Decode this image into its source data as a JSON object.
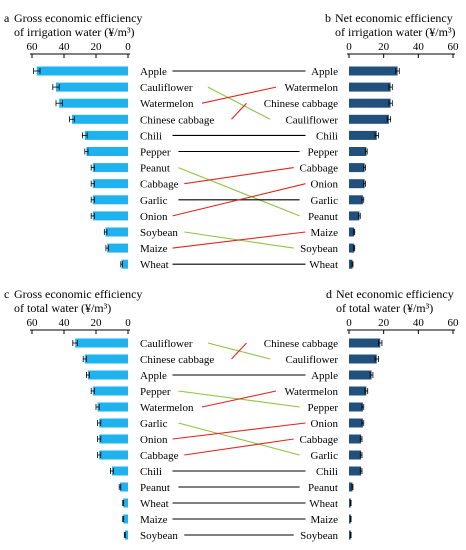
{
  "colors": {
    "gross_bar": "#1eb3ee",
    "net_bar": "#22507c",
    "rank_up": "#e0261f",
    "rank_down": "#8cc63f",
    "same": "#000000"
  },
  "chart_data": [
    {
      "id": "a",
      "type": "bar",
      "orientation": "horizontal",
      "panel_letter": "a",
      "title_line1": "Gross economic efficiency",
      "title_line2": "of irrigation water (¥/m³)",
      "xlim": [
        0,
        60
      ],
      "xticks": [
        "60",
        "40",
        "20",
        "0"
      ],
      "reversed": true,
      "categories": [
        "Apple",
        "Cauliflower",
        "Watermelon",
        "Chinese cabbage",
        "Chili",
        "Pepper",
        "Peanut",
        "Cabbage",
        "Garlic",
        "Onion",
        "Soybean",
        "Maize",
        "Wheat"
      ],
      "values": [
        57,
        45,
        43,
        35,
        27,
        26,
        22,
        22,
        22,
        22,
        14,
        13,
        4
      ],
      "errors": [
        2,
        2,
        2,
        1.5,
        1.5,
        1,
        1,
        1,
        1,
        1,
        0.8,
        0.8,
        0.5
      ]
    },
    {
      "id": "b",
      "type": "bar",
      "orientation": "horizontal",
      "panel_letter": "b",
      "title_line1": "Net economic efficiency",
      "title_line2": "of irrigation water (¥/m³)",
      "xlim": [
        0,
        60
      ],
      "xticks": [
        "0",
        "20",
        "40",
        "60"
      ],
      "reversed": false,
      "categories": [
        "Apple",
        "Watermelon",
        "Chinese cabbage",
        "Cauliflower",
        "Chili",
        "Pepper",
        "Cabbage",
        "Onion",
        "Garlic",
        "Peanut",
        "Maize",
        "Soybean",
        "Wheat"
      ],
      "values": [
        28,
        24,
        24,
        23,
        16,
        10,
        9,
        9,
        8,
        6,
        3,
        3,
        2
      ],
      "errors": [
        1,
        1,
        1,
        1,
        1,
        0.5,
        0.5,
        0.5,
        0.5,
        0.5,
        0.3,
        0.3,
        0.3
      ]
    },
    {
      "id": "c",
      "type": "bar",
      "orientation": "horizontal",
      "panel_letter": "c",
      "title_line1": "Gross economic efficiency",
      "title_line2": "of total water (¥/m³)",
      "xlim": [
        0,
        60
      ],
      "xticks": [
        "60",
        "40",
        "20",
        "0"
      ],
      "reversed": true,
      "categories": [
        "Cauliflower",
        "Chinese cabbage",
        "Apple",
        "Pepper",
        "Watermelon",
        "Garlic",
        "Onion",
        "Cabbage",
        "Chili",
        "Peanut",
        "Wheat",
        "Maize",
        "Soybean"
      ],
      "values": [
        33,
        27,
        25,
        22,
        19,
        18,
        18,
        18,
        10,
        5,
        3,
        3,
        2
      ],
      "errors": [
        1.5,
        1,
        1,
        1,
        1,
        1,
        1,
        1,
        1,
        0.5,
        0.3,
        0.3,
        0.3
      ]
    },
    {
      "id": "d",
      "type": "bar",
      "orientation": "horizontal",
      "panel_letter": "d",
      "title_line1": "Net economic efficiency",
      "title_line2": "of total water (¥/m³)",
      "xlim": [
        0,
        60
      ],
      "xticks": [
        "0",
        "20",
        "40",
        "60"
      ],
      "reversed": false,
      "categories": [
        "Chinese cabbage",
        "Cauliflower",
        "Apple",
        "Watermelon",
        "Pepper",
        "Onion",
        "Cabbage",
        "Garlic",
        "Chili",
        "Peanut",
        "Wheat",
        "Maize",
        "Soybean"
      ],
      "values": [
        18,
        16,
        13,
        10,
        8,
        8,
        7,
        7,
        7,
        2,
        1,
        1,
        1
      ],
      "errors": [
        1,
        1,
        0.8,
        0.8,
        0.5,
        0.5,
        0.5,
        0.5,
        0.5,
        0.3,
        0.2,
        0.2,
        0.2
      ]
    }
  ]
}
